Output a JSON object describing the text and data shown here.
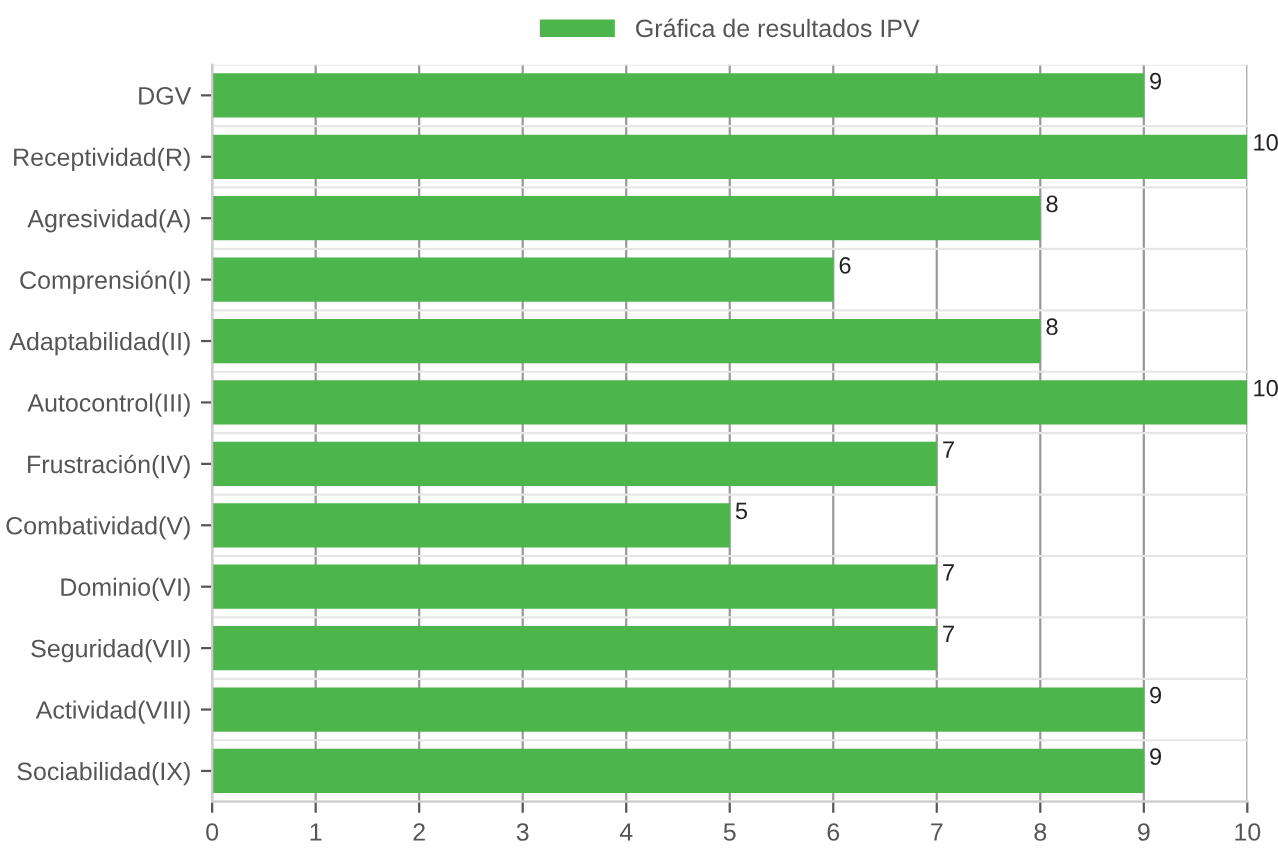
{
  "chart_data": {
    "type": "bar",
    "orientation": "horizontal",
    "categories": [
      "DGV",
      "Receptividad(R)",
      "Agresividad(A)",
      "Comprensión(I)",
      "Adaptabilidad(II)",
      "Autocontrol(III)",
      "Frustración(IV)",
      "Combatividad(V)",
      "Dominio(VI)",
      "Seguridad(VII)",
      "Actividad(VIII)",
      "Sociabilidad(IX)"
    ],
    "series": [
      {
        "name": "Gráfica de resultados IPV",
        "color": "#4cb54c",
        "values": [
          9,
          10,
          8,
          6,
          8,
          10,
          7,
          5,
          7,
          7,
          9,
          9
        ]
      }
    ],
    "xlim": [
      0,
      10
    ],
    "xticks": [
      0,
      1,
      2,
      3,
      4,
      5,
      6,
      7,
      8,
      9,
      10
    ],
    "grid": true,
    "legend": "top",
    "data_labels": true
  }
}
